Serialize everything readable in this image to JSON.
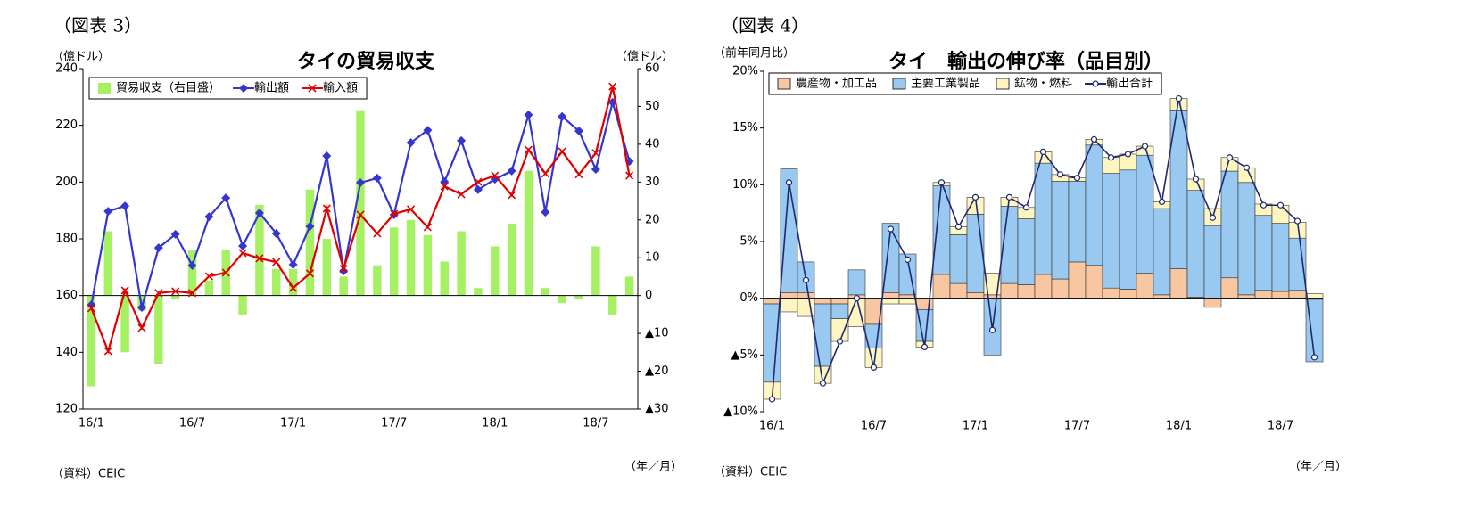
{
  "chart_data": [
    {
      "type": "combo",
      "figure_label": "（図表 3）",
      "title": "タイの貿易収支",
      "y_unit": "（億ドル）",
      "y2_unit": "（億ドル）",
      "source": "（資料）CEIC",
      "x_unit": "（年／月）",
      "categories": [
        "16/1",
        null,
        null,
        null,
        null,
        null,
        "16/7",
        null,
        null,
        null,
        null,
        null,
        "17/1",
        null,
        null,
        null,
        null,
        null,
        "17/7",
        null,
        null,
        null,
        null,
        null,
        "18/1",
        null,
        null,
        null,
        null,
        null,
        "18/7",
        null,
        null
      ],
      "ylim": [
        120,
        240
      ],
      "yticks": [
        120,
        140,
        160,
        180,
        200,
        220,
        240
      ],
      "y2lim": [
        -30,
        60
      ],
      "y2ticks": [
        {
          "value": -30,
          "label": "▲30"
        },
        {
          "value": -20,
          "label": "▲20"
        },
        {
          "value": -10,
          "label": "▲10"
        },
        0,
        10,
        20,
        30,
        40,
        50,
        60
      ],
      "series": [
        {
          "name": "貿易収支（右目盛）",
          "type": "bar",
          "axis": "y2",
          "color": "#a6f064",
          "values": [
            -24,
            17,
            -15,
            -4,
            -18,
            -1,
            12,
            4,
            12,
            -5,
            24,
            7,
            7,
            28,
            15,
            5,
            49,
            8,
            18,
            20,
            16,
            9,
            17,
            2,
            13,
            19,
            33,
            2,
            -2,
            -1,
            13,
            -5,
            5
          ]
        },
        {
          "name": "輸出額",
          "type": "line",
          "marker": "diamond",
          "color": "#3535d0",
          "values": [
            156.7,
            189.7,
            191.6,
            155.8,
            176.8,
            181.6,
            170.6,
            187.8,
            194.4,
            177.5,
            189.1,
            181.9,
            170.9,
            184.4,
            209.2,
            168.7,
            199.8,
            201.4,
            188.5,
            213.9,
            218.3,
            200.1,
            214.6,
            197.3,
            201.0,
            203.9,
            223.7,
            189.4,
            223.1,
            218.0,
            204.5,
            228.1,
            207.3
          ]
        },
        {
          "name": "輸入額",
          "type": "line",
          "marker": "x",
          "color": "#e00000",
          "values": [
            155.5,
            140.4,
            161.8,
            148.6,
            160.9,
            161.5,
            160.9,
            166.8,
            168.1,
            175.0,
            173.1,
            171.8,
            162.7,
            167.8,
            190.7,
            169.4,
            188.5,
            181.9,
            188.8,
            190.4,
            184.1,
            198.5,
            195.7,
            200.1,
            202.3,
            195.4,
            211.4,
            203.0,
            210.8,
            202.7,
            210.2,
            233.7,
            202.3
          ]
        }
      ]
    },
    {
      "type": "stacked_bar",
      "figure_label": "（図表 4）",
      "title": "タイ　輸出の伸び率（品目別）",
      "y_unit": "（前年同月比）",
      "source": "（資料）CEIC",
      "x_unit": "（年／月）",
      "categories": [
        "16/1",
        null,
        null,
        null,
        null,
        null,
        "16/7",
        null,
        null,
        null,
        null,
        null,
        "17/1",
        null,
        null,
        null,
        null,
        null,
        "17/7",
        null,
        null,
        null,
        null,
        null,
        "18/1",
        null,
        null,
        null,
        null,
        null,
        "18/7",
        null,
        null
      ],
      "ylim": [
        -10,
        20
      ],
      "yticks": [
        {
          "value": -10,
          "label": "▲10%"
        },
        {
          "value": -5,
          "label": "▲5%"
        },
        {
          "value": 0,
          "label": "0%"
        },
        {
          "value": 5,
          "label": "5%"
        },
        {
          "value": 10,
          "label": "10%"
        },
        {
          "value": 15,
          "label": "15%"
        },
        {
          "value": 20,
          "label": "20%"
        }
      ],
      "series": [
        {
          "name": "農産物・加工品",
          "type": "bar",
          "color": "#f8c6a0",
          "values": [
            -0.5,
            0.5,
            0.5,
            -0.5,
            -0.5,
            0.3,
            -2.3,
            0.5,
            0.3,
            -1.0,
            2.1,
            1.3,
            0.5,
            0.3,
            1.3,
            1.2,
            2.1,
            1.7,
            3.2,
            2.9,
            0.9,
            0.8,
            2.2,
            0.3,
            2.6,
            0.1,
            -0.8,
            1.8,
            0.3,
            0.7,
            0.6,
            0.7,
            -0.1
          ]
        },
        {
          "name": "主要工業製品",
          "type": "bar",
          "color": "#99c8f0",
          "values": [
            -6.9,
            10.9,
            2.7,
            -5.5,
            -1.3,
            2.2,
            -2.1,
            6.1,
            3.6,
            -2.8,
            7.8,
            4.3,
            6.9,
            -5.0,
            6.8,
            5.8,
            9.8,
            8.6,
            7.1,
            10.6,
            10.1,
            10.5,
            10.4,
            7.6,
            14.0,
            9.4,
            6.4,
            9.4,
            9.9,
            6.6,
            6.0,
            4.6,
            -5.5
          ]
        },
        {
          "name": "鉱物・燃料",
          "type": "bar",
          "color": "#fff5c0",
          "values": [
            -1.5,
            -1.2,
            -1.6,
            -1.5,
            -2.0,
            -2.5,
            -1.7,
            -0.5,
            -0.5,
            -0.5,
            0.3,
            0.7,
            1.5,
            1.9,
            0.8,
            1.0,
            1.0,
            0.6,
            0.3,
            0.5,
            1.4,
            1.4,
            0.8,
            0.6,
            1.0,
            1.0,
            1.5,
            1.2,
            1.3,
            1.0,
            1.6,
            1.4,
            0.4
          ]
        },
        {
          "name": "輸出合計",
          "type": "line",
          "marker": "circle",
          "color": "#1f2a6e",
          "values": [
            -8.9,
            10.2,
            1.6,
            -7.5,
            -3.8,
            0.0,
            -6.1,
            6.1,
            3.4,
            -4.3,
            10.2,
            6.3,
            8.9,
            -2.8,
            8.9,
            8.0,
            12.9,
            10.9,
            10.6,
            14.0,
            12.4,
            12.7,
            13.4,
            8.5,
            17.6,
            10.5,
            7.1,
            12.4,
            11.5,
            8.2,
            8.2,
            6.8,
            -5.2
          ]
        }
      ]
    }
  ]
}
